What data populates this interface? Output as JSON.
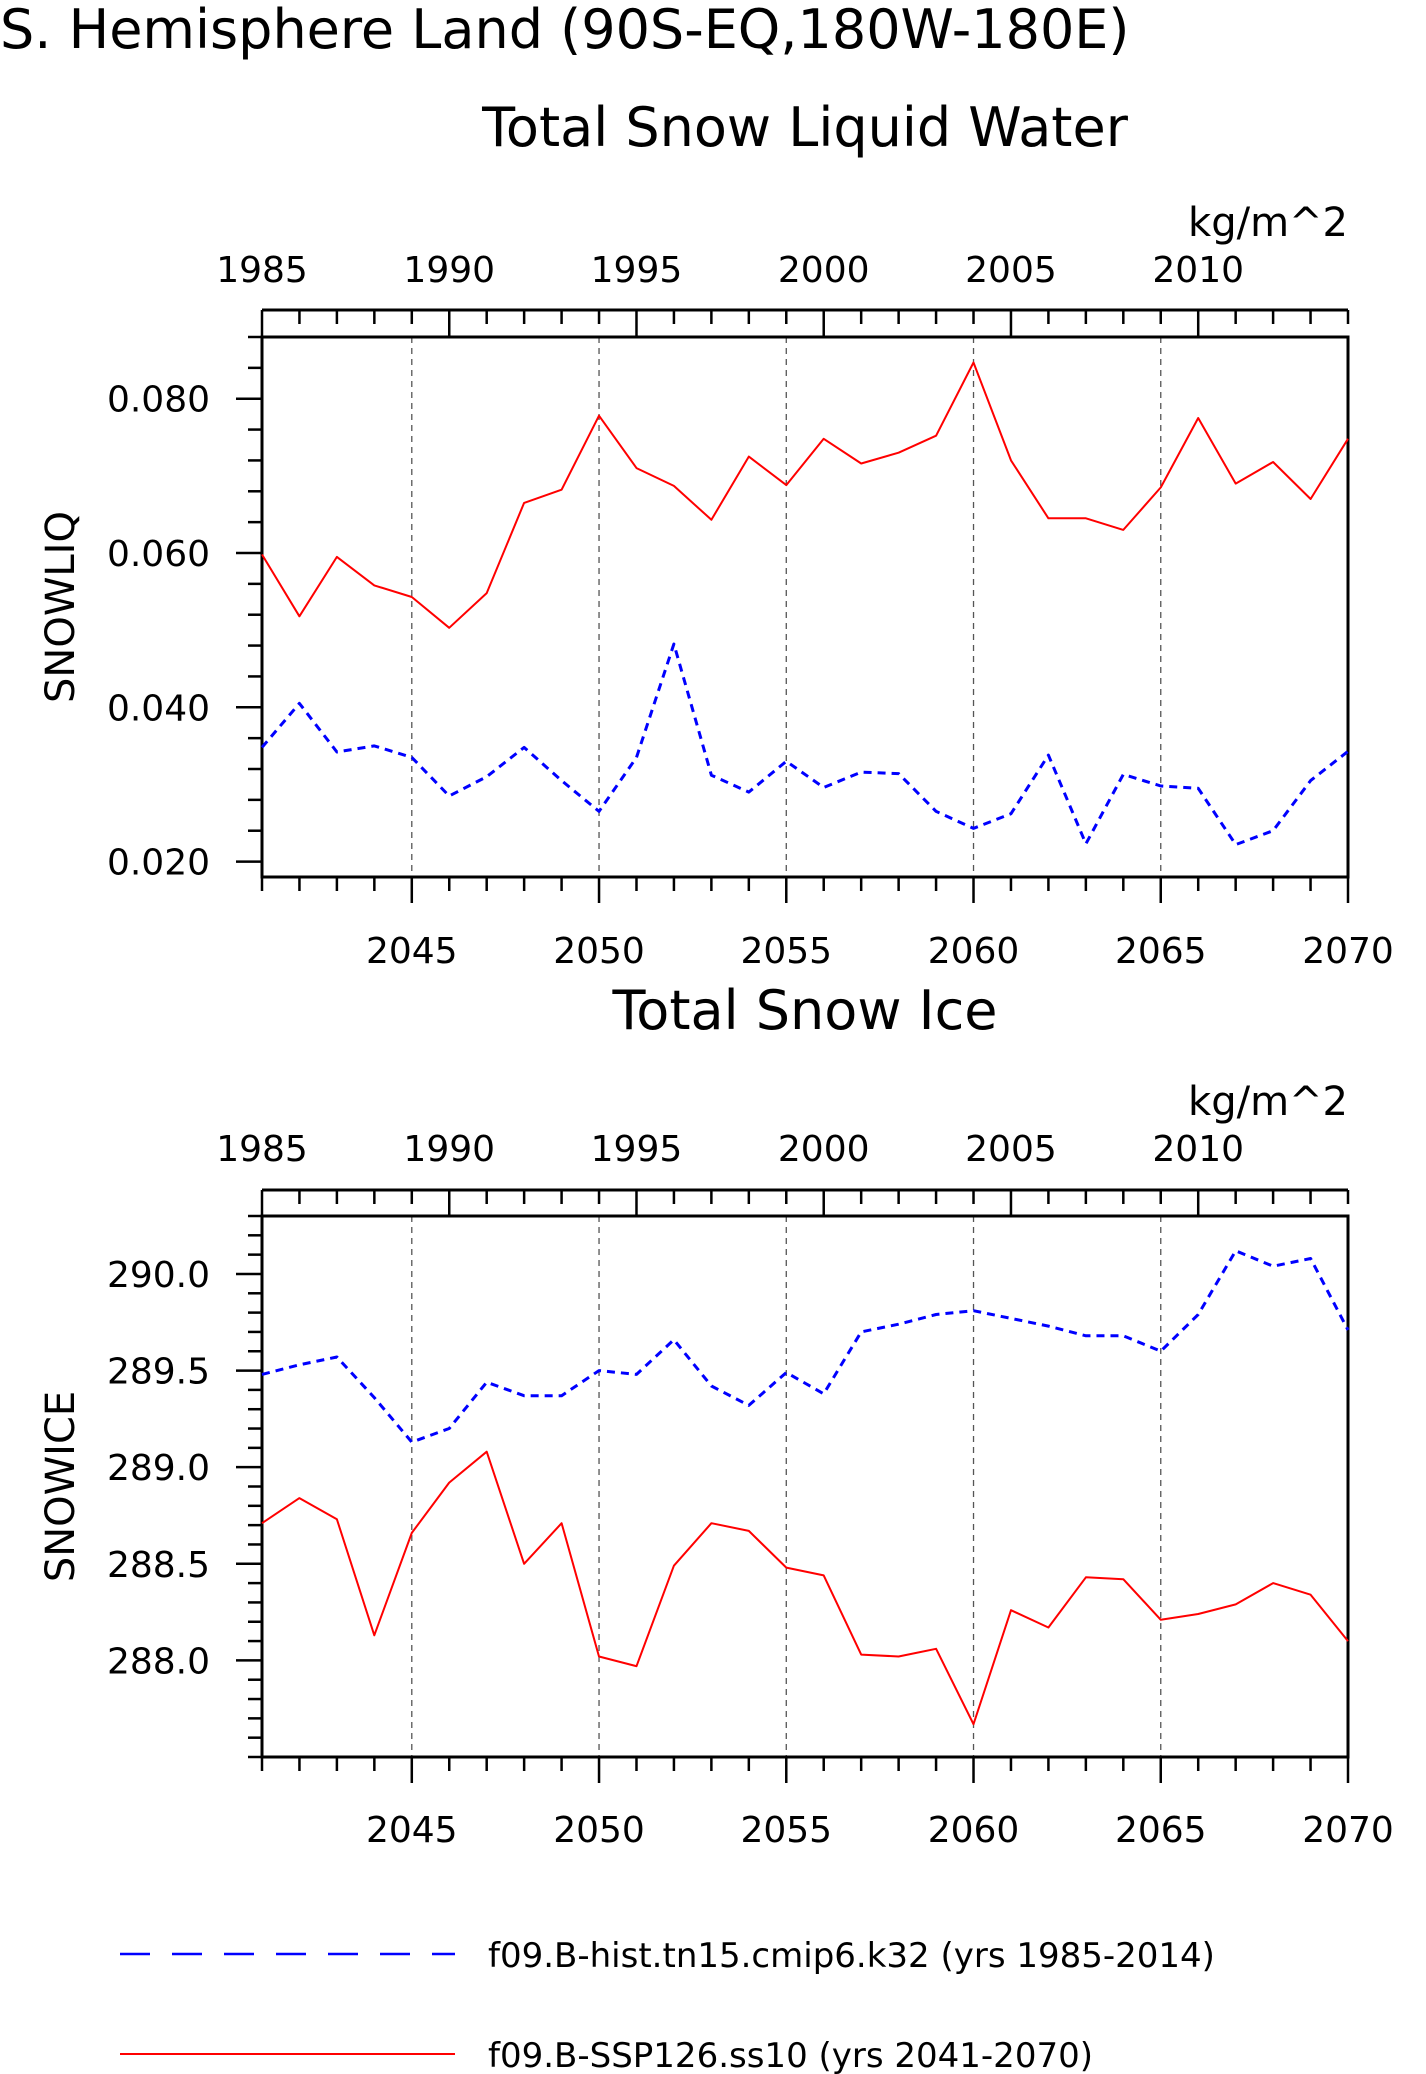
{
  "main_title": "S. Hemisphere Land (90S-EQ,180W-180E)",
  "colors": {
    "hist": "#0000ff",
    "ssp": "#ff0000",
    "axis": "#000000",
    "grid": "#555555"
  },
  "legend": {
    "placement": "bottom",
    "hist_label": "f09.B-hist.tn15.cmip6.k32 (yrs 1985-2014)",
    "ssp_label": "f09.B-SSP126.ss10 (yrs 2041-2070)"
  },
  "chart_data": [
    {
      "type": "line",
      "title": "Total Snow Liquid Water",
      "units": "kg/m^2",
      "ylabel": "SNOWLIQ",
      "ylim": [
        0.018,
        0.088
      ],
      "yticks": [
        "0.020",
        "0.040",
        "0.060",
        "0.080"
      ],
      "x_bottom": {
        "range": [
          2041,
          2070
        ],
        "tick_labels": [
          "2045",
          "2050",
          "2055",
          "2060",
          "2065",
          "2070"
        ]
      },
      "x_top": {
        "range": [
          1985,
          2014
        ],
        "tick_labels": [
          "1985",
          "1990",
          "1995",
          "2000",
          "2005",
          "2010"
        ]
      },
      "grid": "vertical dashed at labeled years",
      "series": [
        {
          "name": "f09.B-hist.tn15.cmip6.k32 (yrs 1985-2014)",
          "axis": "top",
          "style": "dashed",
          "x": [
            1985,
            1986,
            1987,
            1988,
            1989,
            1990,
            1991,
            1992,
            1993,
            1994,
            1995,
            1996,
            1997,
            1998,
            1999,
            2000,
            2001,
            2002,
            2003,
            2004,
            2005,
            2006,
            2007,
            2008,
            2009,
            2010,
            2011,
            2012,
            2013,
            2014
          ],
          "values": [
            0.0348,
            0.0405,
            0.0342,
            0.035,
            0.0335,
            0.0285,
            0.031,
            0.0348,
            0.0305,
            0.0265,
            0.0335,
            0.0482,
            0.0312,
            0.029,
            0.033,
            0.0296,
            0.0316,
            0.0314,
            0.0265,
            0.0243,
            0.0262,
            0.0338,
            0.0223,
            0.0313,
            0.0298,
            0.0295,
            0.0222,
            0.024,
            0.0305,
            0.0343
          ]
        },
        {
          "name": "f09.B-SSP126.ss10 (yrs 2041-2070)",
          "axis": "bottom",
          "style": "solid",
          "x": [
            2041,
            2042,
            2043,
            2044,
            2045,
            2046,
            2047,
            2048,
            2049,
            2050,
            2051,
            2052,
            2053,
            2054,
            2055,
            2056,
            2057,
            2058,
            2059,
            2060,
            2061,
            2062,
            2063,
            2064,
            2065,
            2066,
            2067,
            2068,
            2069,
            2070
          ],
          "values": [
            0.0598,
            0.0518,
            0.0595,
            0.0558,
            0.0543,
            0.0503,
            0.0548,
            0.0665,
            0.0682,
            0.0778,
            0.071,
            0.0687,
            0.0643,
            0.0725,
            0.0688,
            0.0748,
            0.0716,
            0.073,
            0.0752,
            0.0847,
            0.072,
            0.0645,
            0.0645,
            0.063,
            0.0685,
            0.0775,
            0.069,
            0.0718,
            0.067,
            0.0748
          ]
        }
      ]
    },
    {
      "type": "line",
      "title": "Total Snow Ice",
      "units": "kg/m^2",
      "ylabel": "SNOWICE",
      "ylim": [
        287.5,
        290.3
      ],
      "yticks": [
        "288.0",
        "288.5",
        "289.0",
        "289.5",
        "290.0"
      ],
      "x_bottom": {
        "range": [
          2041,
          2070
        ],
        "tick_labels": [
          "2045",
          "2050",
          "2055",
          "2060",
          "2065",
          "2070"
        ]
      },
      "x_top": {
        "range": [
          1985,
          2014
        ],
        "tick_labels": [
          "1985",
          "1990",
          "1995",
          "2000",
          "2005",
          "2010"
        ]
      },
      "grid": "vertical dashed at labeled years",
      "series": [
        {
          "name": "f09.B-hist.tn15.cmip6.k32 (yrs 1985-2014)",
          "axis": "top",
          "style": "dashed",
          "x": [
            1985,
            1986,
            1987,
            1988,
            1989,
            1990,
            1991,
            1992,
            1993,
            1994,
            1995,
            1996,
            1997,
            1998,
            1999,
            2000,
            2001,
            2002,
            2003,
            2004,
            2005,
            2006,
            2007,
            2008,
            2009,
            2010,
            2011,
            2012,
            2013,
            2014
          ],
          "values": [
            289.48,
            289.53,
            289.57,
            289.36,
            289.13,
            289.2,
            289.44,
            289.37,
            289.37,
            289.5,
            289.48,
            289.66,
            289.42,
            289.32,
            289.49,
            289.38,
            289.7,
            289.74,
            289.79,
            289.81,
            289.77,
            289.73,
            289.68,
            289.68,
            289.6,
            289.79,
            290.12,
            290.04,
            290.08,
            289.71
          ]
        },
        {
          "name": "f09.B-SSP126.ss10 (yrs 2041-2070)",
          "axis": "bottom",
          "style": "solid",
          "x": [
            2041,
            2042,
            2043,
            2044,
            2045,
            2046,
            2047,
            2048,
            2049,
            2050,
            2051,
            2052,
            2053,
            2054,
            2055,
            2056,
            2057,
            2058,
            2059,
            2060,
            2061,
            2062,
            2063,
            2064,
            2065,
            2066,
            2067,
            2068,
            2069,
            2070
          ],
          "values": [
            288.71,
            288.84,
            288.73,
            288.13,
            288.66,
            288.92,
            289.08,
            288.5,
            288.71,
            288.02,
            287.97,
            288.49,
            288.71,
            288.67,
            288.48,
            288.44,
            288.03,
            288.02,
            288.06,
            287.67,
            288.26,
            288.17,
            288.43,
            288.42,
            288.21,
            288.24,
            288.29,
            288.4,
            288.34,
            288.1
          ]
        }
      ]
    }
  ]
}
